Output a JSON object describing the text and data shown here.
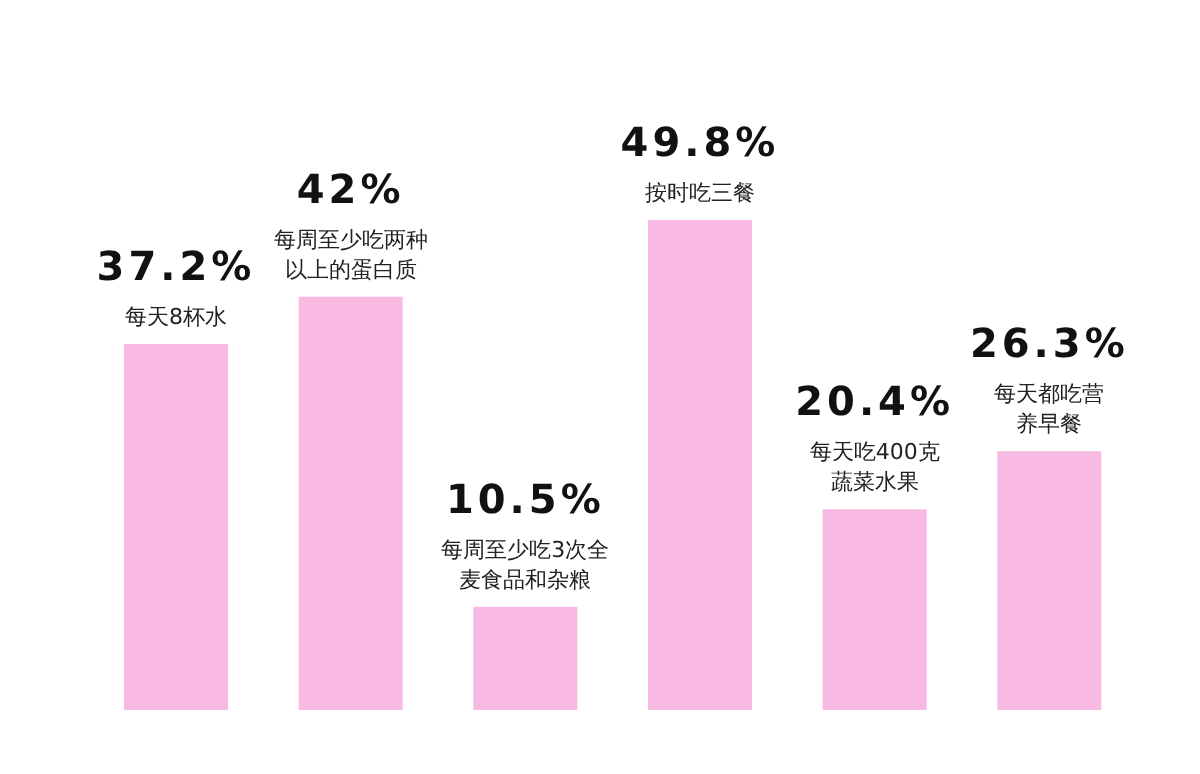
{
  "chart_data": {
    "type": "bar",
    "categories": [
      "每天8杯水",
      "每周至少吃两种以上的蛋白质",
      "每周至少吃3次全麦食品和杂粮",
      "按时吃三餐",
      "每天吃400克蔬菜水果",
      "每天都吃营养早餐"
    ],
    "values": [
      37.2,
      42,
      10.5,
      49.8,
      20.4,
      26.3
    ],
    "value_labels": [
      "37.2%",
      "42%",
      "10.5%",
      "49.8%",
      "20.4%",
      "26.3%"
    ],
    "color": "#f8b9e2"
  }
}
